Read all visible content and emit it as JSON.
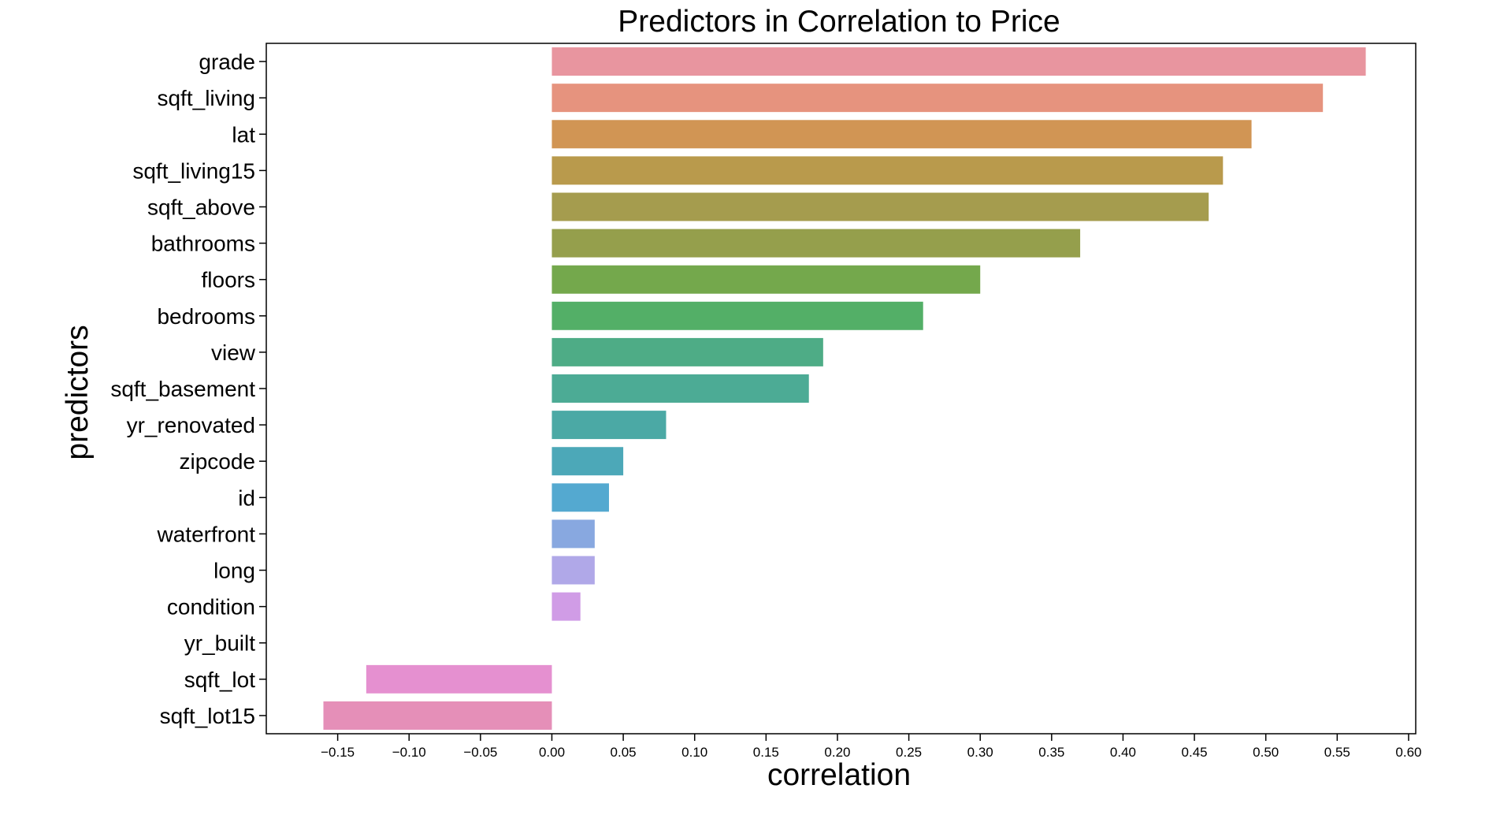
{
  "chart_data": {
    "type": "bar",
    "orientation": "horizontal",
    "title": "Predictors in Correlation to Price",
    "xlabel": "correlation",
    "ylabel": "predictors",
    "xlim": [
      -0.2,
      0.605
    ],
    "categories": [
      "grade",
      "sqft_living",
      "lat",
      "sqft_living15",
      "sqft_above",
      "bathrooms",
      "floors",
      "bedrooms",
      "view",
      "sqft_basement",
      "yr_renovated",
      "zipcode",
      "id",
      "waterfront",
      "long",
      "condition",
      "yr_built",
      "sqft_lot",
      "sqft_lot15"
    ],
    "values": [
      0.57,
      0.54,
      0.49,
      0.47,
      0.46,
      0.37,
      0.3,
      0.26,
      0.19,
      0.18,
      0.08,
      0.05,
      0.04,
      0.03,
      0.03,
      0.02,
      0.0,
      -0.13,
      -0.16
    ],
    "colors": [
      "#E8959F",
      "#E6937E",
      "#D19554",
      "#B99A4C",
      "#A59C4E",
      "#959F4C",
      "#74A84C",
      "#53AF67",
      "#4EAC86",
      "#4CAB95",
      "#4BA9A5",
      "#4CA8B8",
      "#54A9D0",
      "#88A8E0",
      "#B0A8E8",
      "#D09CE6",
      "#DF93DC",
      "#E590D0",
      "#E58FB8"
    ],
    "xticks": [
      -0.15,
      -0.1,
      -0.05,
      0.0,
      0.05,
      0.1,
      0.15,
      0.2,
      0.25,
      0.3,
      0.35,
      0.4,
      0.45,
      0.5,
      0.55,
      0.6
    ],
    "xtick_labels": [
      "−0.15",
      "−0.10",
      "−0.05",
      "0.00",
      "0.05",
      "0.10",
      "0.15",
      "0.20",
      "0.25",
      "0.30",
      "0.35",
      "0.40",
      "0.45",
      "0.50",
      "0.55",
      "0.60"
    ],
    "grid": false,
    "legend": "none"
  }
}
